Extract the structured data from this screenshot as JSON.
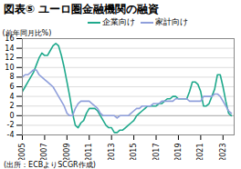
{
  "chart_data": {
    "type": "line",
    "title": "図表⑤ ユーロ圏金融機関の融資",
    "ylabel": "(前年同月比%)",
    "caption": "(出所：ECBよりSCGR作成)",
    "x": [
      2005,
      2005.25,
      2005.5,
      2005.75,
      2006,
      2006.25,
      2006.5,
      2006.75,
      2007,
      2007.25,
      2007.5,
      2007.75,
      2008,
      2008.25,
      2008.5,
      2008.75,
      2009,
      2009.25,
      2009.5,
      2009.75,
      2010,
      2010.25,
      2010.5,
      2010.75,
      2011,
      2011.25,
      2011.5,
      2011.75,
      2012,
      2012.25,
      2012.5,
      2012.75,
      2013,
      2013.25,
      2013.5,
      2013.75,
      2014,
      2014.25,
      2014.5,
      2014.75,
      2015,
      2015.25,
      2015.5,
      2015.75,
      2016,
      2016.25,
      2016.5,
      2016.75,
      2017,
      2017.25,
      2017.5,
      2017.75,
      2018,
      2018.25,
      2018.5,
      2018.75,
      2019,
      2019.25,
      2019.5,
      2019.75,
      2020,
      2020.25,
      2020.5,
      2020.75,
      2021,
      2021.25,
      2021.5,
      2021.75,
      2022,
      2022.25,
      2022.5,
      2022.75,
      2023,
      2023.25,
      2023.5,
      2023.75
    ],
    "series": [
      {
        "name": "企業向け",
        "color": "#1fa98c",
        "values": [
          5,
          6,
          7,
          8,
          9,
          10.5,
          12,
          13,
          12.5,
          12.5,
          13.5,
          14.5,
          15,
          14.5,
          12.5,
          10,
          7,
          4,
          0.5,
          -2,
          -2.5,
          -1.5,
          -1,
          0.5,
          1.5,
          1.5,
          1.5,
          1,
          0,
          -1,
          -2,
          -2.5,
          -2.5,
          -3.5,
          -3.5,
          -3,
          -3,
          -2.5,
          -2,
          -1.5,
          -1,
          0,
          0.5,
          1,
          1.5,
          2,
          2,
          2,
          2,
          2.5,
          2.5,
          3,
          3.5,
          3.5,
          4,
          4,
          3.5,
          3.5,
          3.5,
          3.5,
          5,
          7,
          7,
          6.5,
          5,
          2,
          2,
          2.5,
          4,
          5.5,
          8.5,
          8.5,
          6,
          3,
          0.5,
          0
        ]
      },
      {
        "name": "家計向け",
        "color": "#8f9fdb",
        "values": [
          8,
          8.5,
          8.5,
          9,
          9.5,
          9.5,
          8.5,
          8,
          7.5,
          7,
          6.5,
          6,
          5,
          4,
          3,
          2,
          0.5,
          0,
          0,
          1.5,
          2.5,
          3,
          3,
          3,
          3,
          2.5,
          2,
          1.5,
          0.5,
          0,
          0,
          0,
          0,
          0,
          -0.5,
          0,
          0,
          0,
          0,
          0.5,
          1,
          1.5,
          1.5,
          2,
          2,
          2,
          2,
          2.5,
          2.5,
          2.5,
          3,
          3,
          3,
          3,
          3,
          3.5,
          3.5,
          3.5,
          3.5,
          3.5,
          3,
          3,
          3,
          3,
          3,
          4,
          4,
          4,
          4,
          4.5,
          4.5,
          4,
          3,
          2,
          1,
          0.5
        ]
      }
    ],
    "xlim": [
      2005,
      2024
    ],
    "xticks": [
      2005,
      2007,
      2009,
      2011,
      2013,
      2015,
      2017,
      2019,
      2021,
      2023
    ],
    "ylim": [
      -4,
      16
    ],
    "yticks": [
      -4,
      -2,
      0,
      2,
      4,
      6,
      8,
      10,
      12,
      14,
      16
    ],
    "grid": true,
    "legend": "top"
  }
}
